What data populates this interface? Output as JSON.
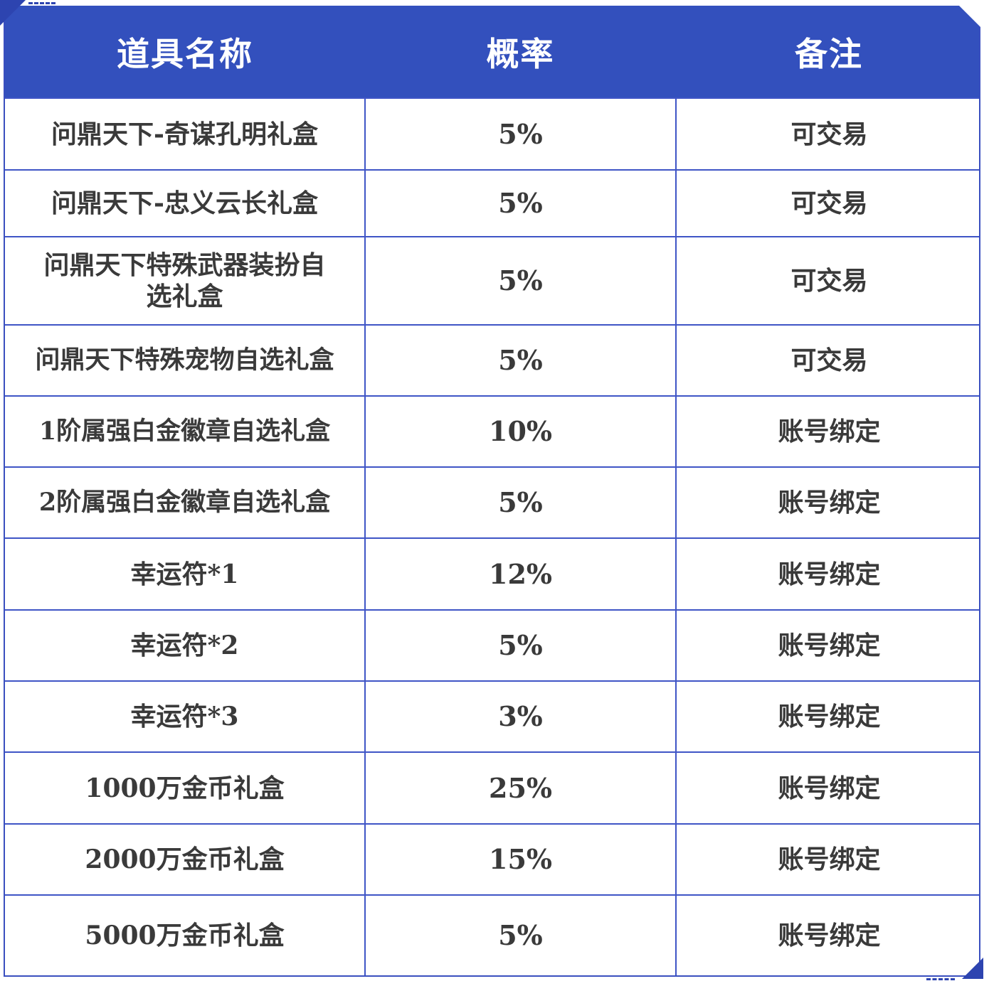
{
  "table": {
    "headers": [
      "道具名称",
      "概率",
      "备注"
    ],
    "rows": [
      {
        "name": "问鼎天下-奇谋孔明礼盒",
        "rate": "5%",
        "note": "可交易"
      },
      {
        "name": "问鼎天下-忠义云长礼盒",
        "rate": "5%",
        "note": "可交易"
      },
      {
        "name": "问鼎天下特殊武器装扮自选礼盒",
        "rate": "5%",
        "note": "可交易"
      },
      {
        "name": "问鼎天下特殊宠物自选礼盒",
        "rate": "5%",
        "note": "可交易"
      },
      {
        "name": "1阶属强白金徽章自选礼盒",
        "rate": "10%",
        "note": "账号绑定"
      },
      {
        "name": "2阶属强白金徽章自选礼盒",
        "rate": "5%",
        "note": "账号绑定"
      },
      {
        "name": "幸运符*1",
        "rate": "12%",
        "note": "账号绑定"
      },
      {
        "name": "幸运符*2",
        "rate": "5%",
        "note": "账号绑定"
      },
      {
        "name": "幸运符*3",
        "rate": "3%",
        "note": "账号绑定"
      },
      {
        "name": "1000万金币礼盒",
        "rate": "25%",
        "note": "账号绑定"
      },
      {
        "name": "2000万金币礼盒",
        "rate": "15%",
        "note": "账号绑定"
      },
      {
        "name": "5000万金币礼盒",
        "rate": "5%",
        "note": "账号绑定"
      }
    ]
  },
  "colors": {
    "header_bg": "#3350bd",
    "header_text": "#ffffff",
    "border": "#3f55c6",
    "cell_text": "#3a3a3a"
  }
}
